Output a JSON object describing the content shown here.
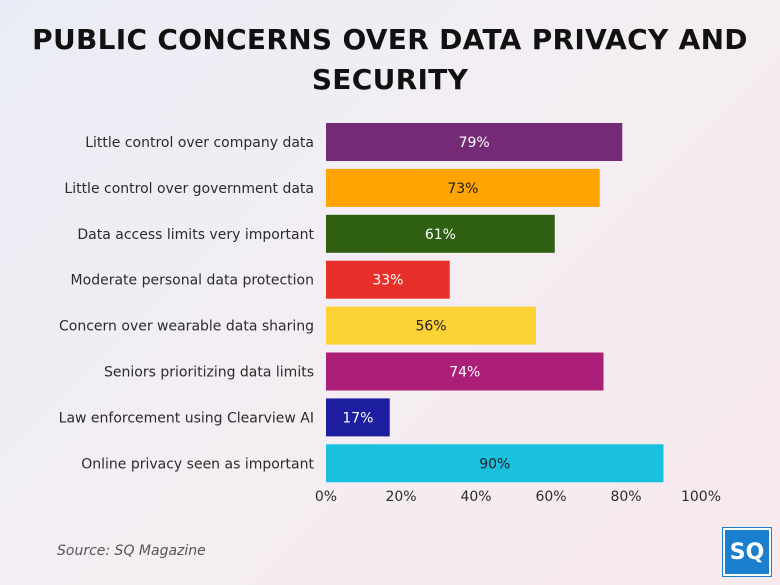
{
  "title": "PUBLIC CONCERNS OVER DATA PRIVACY AND SECURITY",
  "source": "Source: SQ Magazine",
  "logo_text": "SQ",
  "chart_data": {
    "type": "bar",
    "orientation": "horizontal",
    "title": "PUBLIC CONCERNS OVER DATA PRIVACY AND SECURITY",
    "xlabel": "",
    "ylabel": "",
    "xlim": [
      0,
      100
    ],
    "grid": false,
    "legend": "none",
    "categories": [
      "Little control over company data",
      "Little control over government data",
      "Data access limits very important",
      "Moderate personal data protection",
      "Concern over wearable data sharing",
      "Seniors prioritizing data limits",
      "Law enforcement using Clearview AI",
      "Online privacy seen as important"
    ],
    "values": [
      79,
      73,
      61,
      33,
      56,
      74,
      17,
      90
    ],
    "data_labels": [
      "79%",
      "73%",
      "61%",
      "33%",
      "56%",
      "74%",
      "17%",
      "90%"
    ],
    "colors": [
      "#742a74",
      "#ffa400",
      "#2f5f11",
      "#e8302a",
      "#fdd235",
      "#ab1f78",
      "#1e1ea0",
      "#19c1de"
    ],
    "label_colors": [
      "#ffffff",
      "#222222",
      "#ffffff",
      "#ffffff",
      "#222222",
      "#ffffff",
      "#ffffff",
      "#222222"
    ],
    "x_ticks": [
      "0%",
      "20%",
      "40%",
      "60%",
      "80%",
      "100%"
    ]
  }
}
